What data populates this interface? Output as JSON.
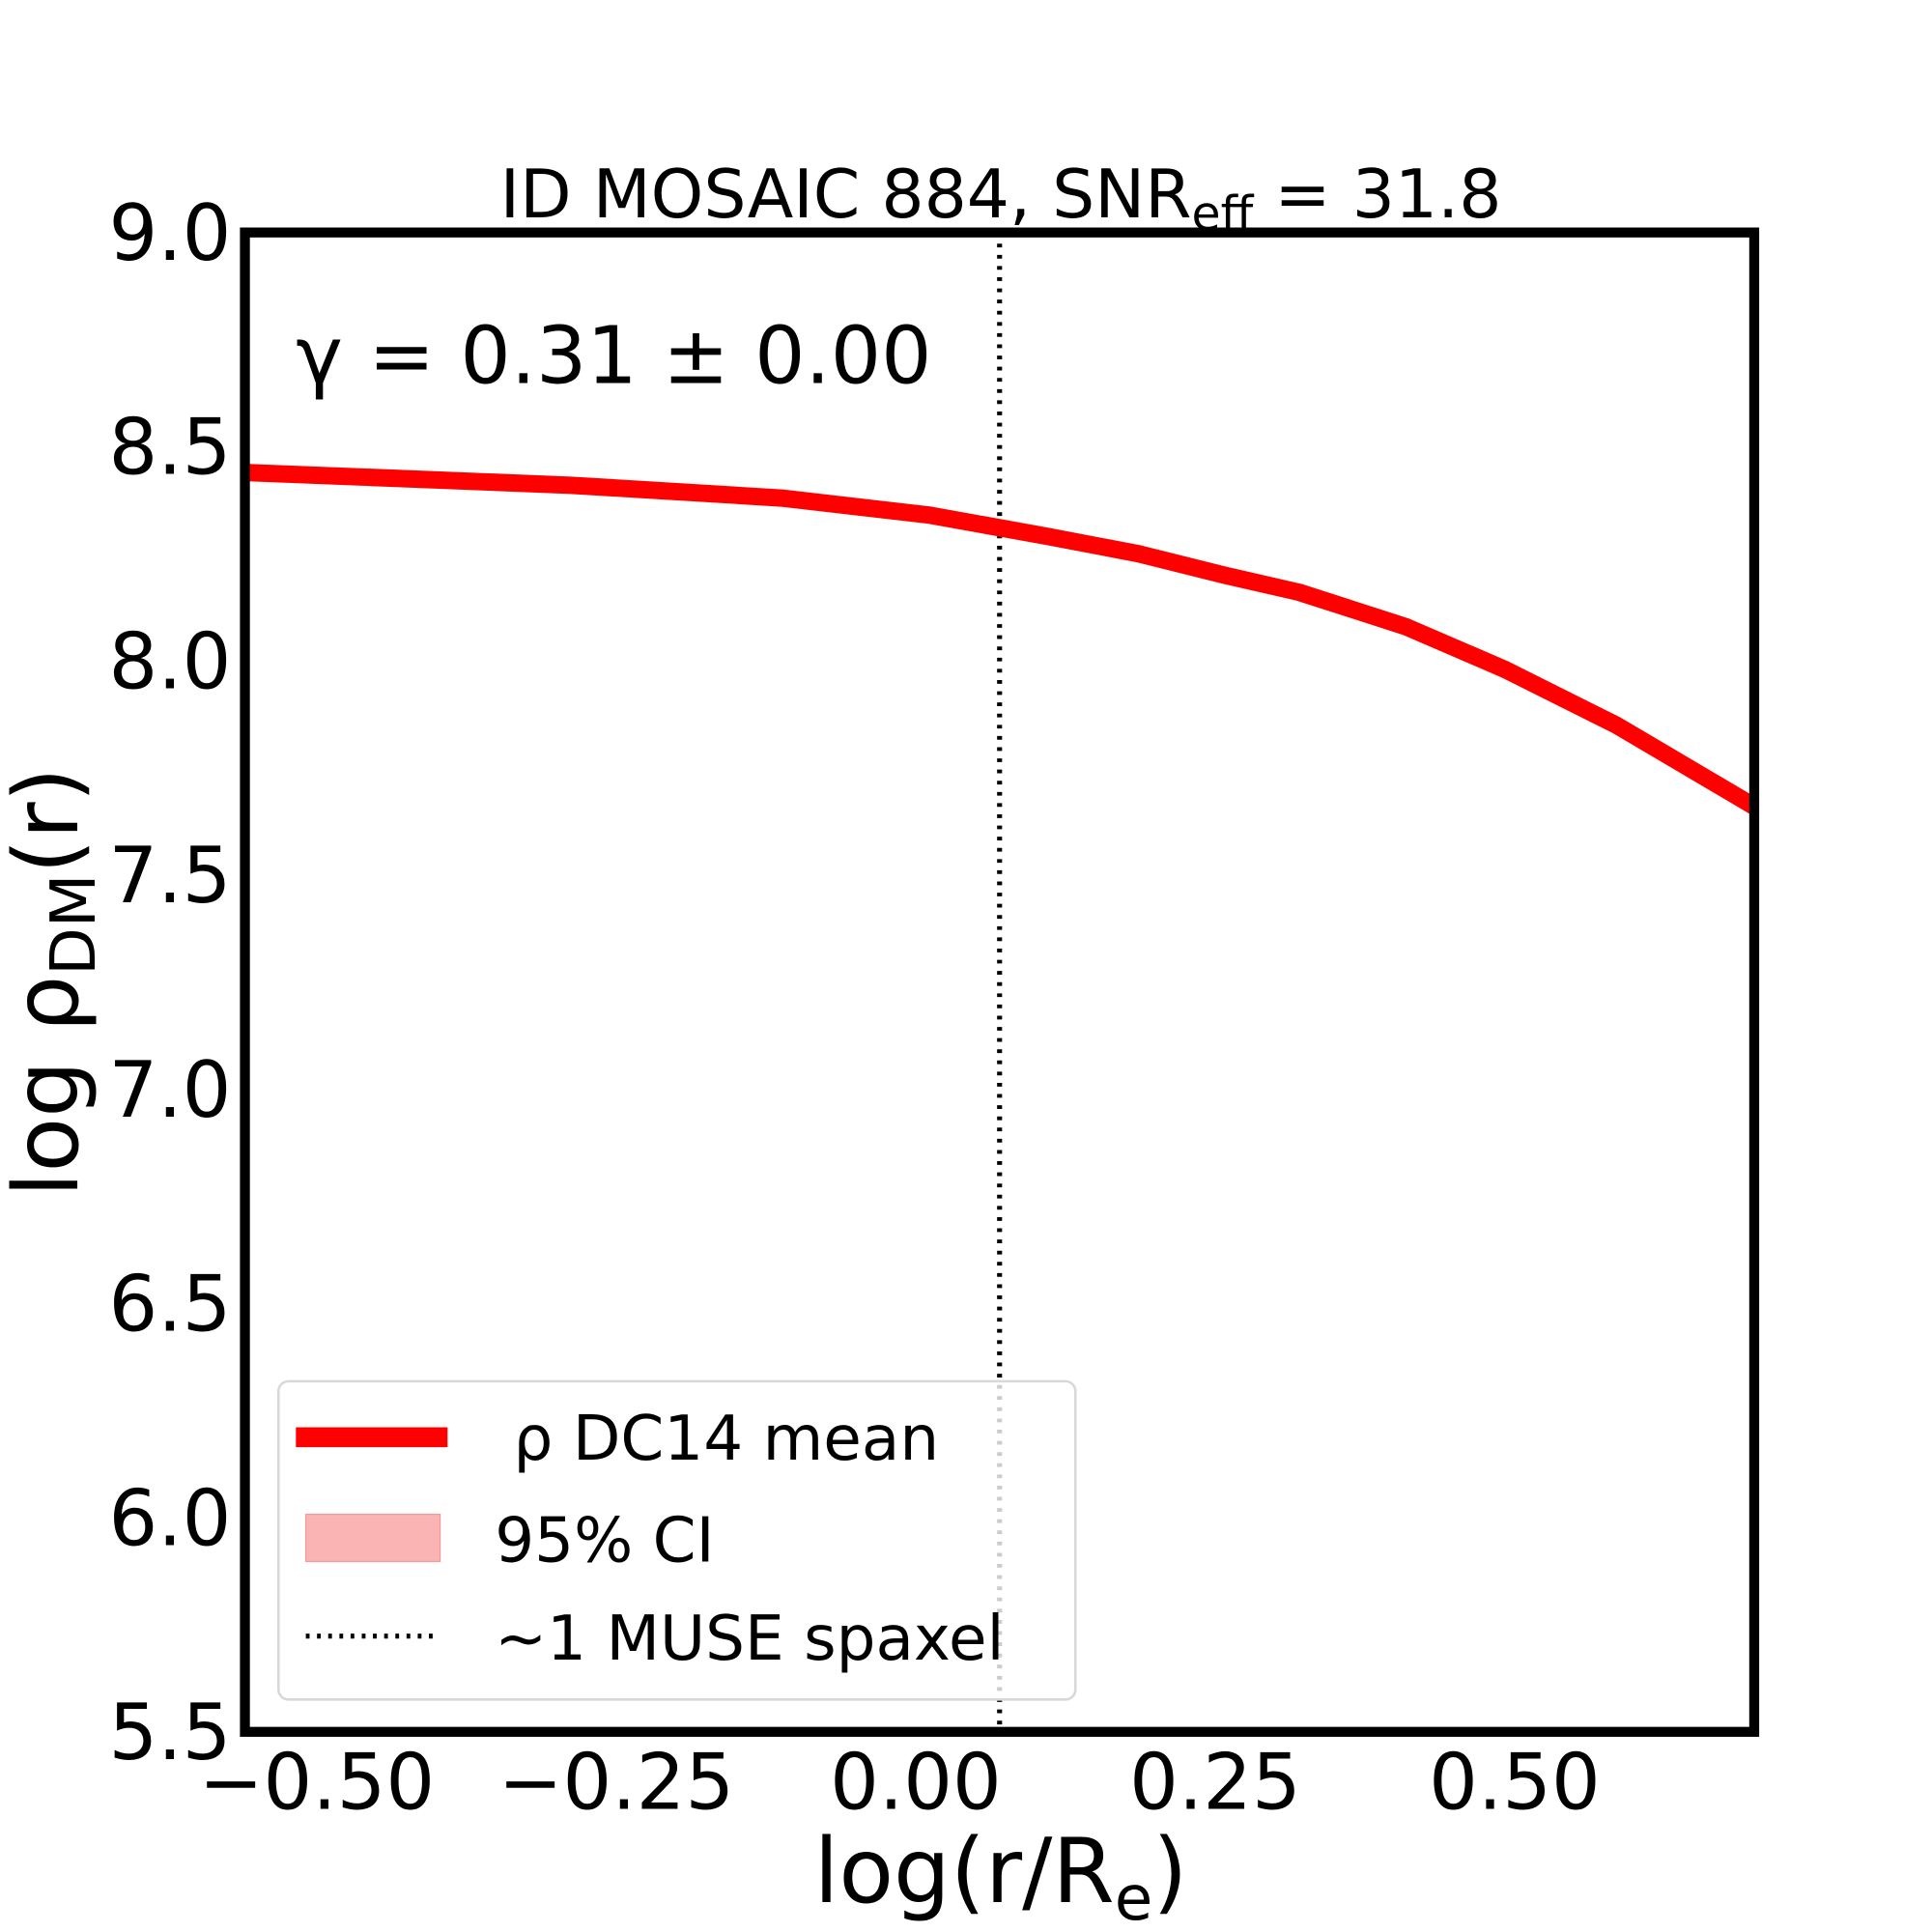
{
  "chart_data": {
    "type": "line",
    "title": "ID MOSAIC 884, SNR",
    "title_sub": "eff",
    "title_suffix": " = 31.8",
    "xlabel": "log(r/R",
    "xlabel_sub": "e",
    "xlabel_suffix": ")",
    "ylabel": "log ρ",
    "ylabel_sub": "DM",
    "ylabel_suffix": "(r)",
    "xlim": [
      -0.56,
      0.7
    ],
    "ylim": [
      5.5,
      9.0
    ],
    "xticks": [
      -0.5,
      -0.25,
      0.0,
      0.25,
      0.5
    ],
    "xtick_labels": [
      "−0.50",
      "−0.25",
      "0.00",
      "0.25",
      "0.50"
    ],
    "yticks": [
      5.5,
      6.0,
      6.5,
      7.0,
      7.5,
      8.0,
      8.5,
      9.0
    ],
    "ytick_labels": [
      "5.5",
      "6.0",
      "6.5",
      "7.0",
      "7.5",
      "8.0",
      "8.5",
      "9.0"
    ],
    "annotation": "γ = 0.31 ± 0.00",
    "grid": false,
    "legend_placement": "lower-left",
    "series": [
      {
        "name": "ρ DC14 mean",
        "color": "#ff0000",
        "x": [
          -0.56,
          -0.288,
          -0.112,
          0.012,
          0.111,
          0.186,
          0.258,
          0.32,
          0.409,
          0.492,
          0.585,
          0.7
        ],
        "y": [
          8.44,
          8.41,
          8.38,
          8.34,
          8.29,
          8.25,
          8.2,
          8.16,
          8.08,
          7.98,
          7.85,
          7.66
        ]
      }
    ],
    "ci_band": {
      "name": "95% CI",
      "color": "#fbb4b4"
    },
    "vline": {
      "name": "~1 MUSE spaxel",
      "x": 0.07,
      "style": "dotted",
      "color": "#000000"
    }
  }
}
